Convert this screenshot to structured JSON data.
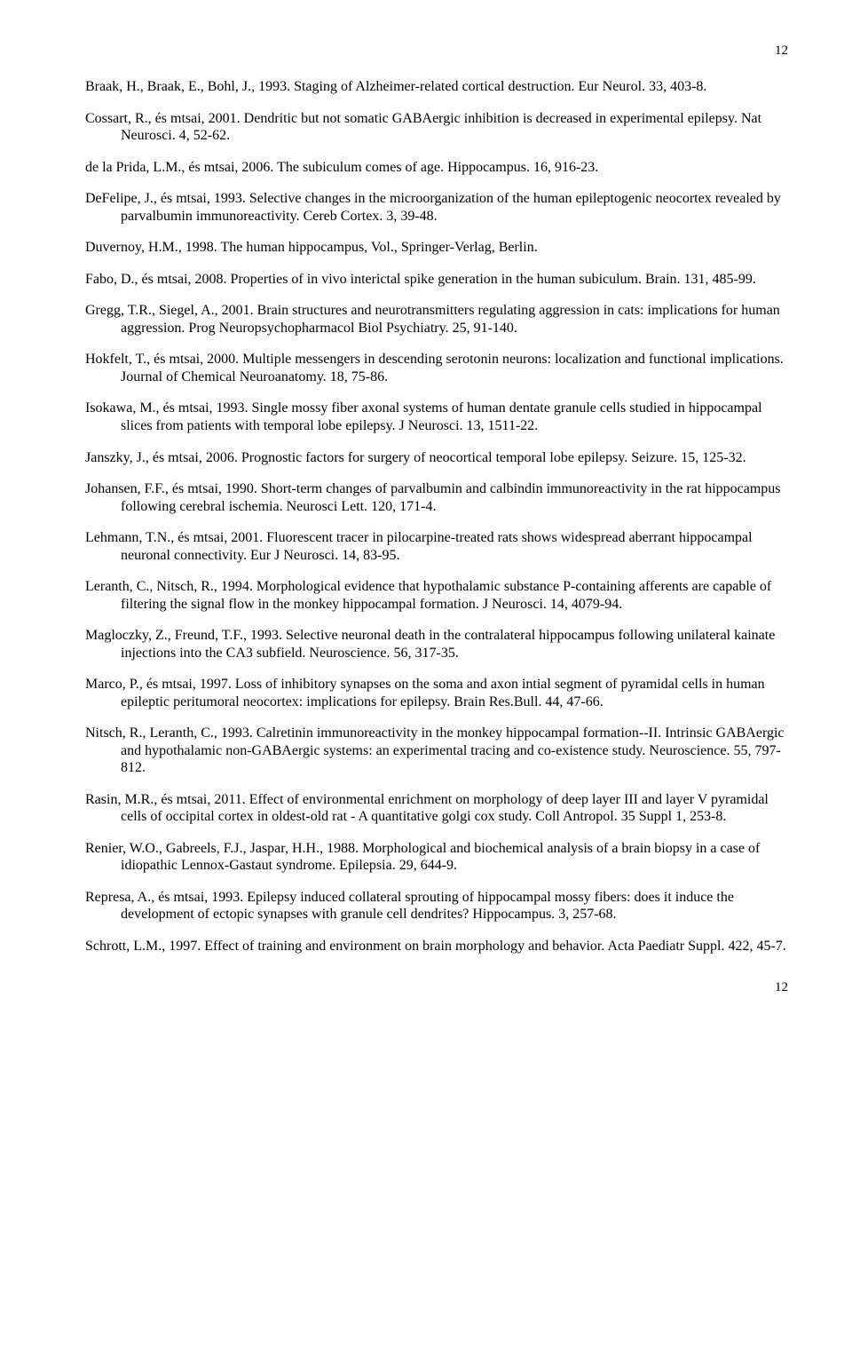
{
  "page_number_top": "12",
  "page_number_bottom": "12",
  "references": [
    "Braak, H., Braak, E., Bohl, J., 1993. Staging of Alzheimer-related cortical destruction. Eur Neurol. 33, 403-8.",
    "Cossart, R., és mtsai, 2001. Dendritic but not somatic GABAergic inhibition is decreased in experimental epilepsy. Nat Neurosci. 4, 52-62.",
    "de la Prida, L.M., és mtsai, 2006. The subiculum comes of age. Hippocampus. 16, 916-23.",
    "DeFelipe, J., és mtsai, 1993. Selective changes in the microorganization of the human epileptogenic neocortex revealed by parvalbumin immunoreactivity. Cereb Cortex. 3, 39-48.",
    "Duvernoy, H.M., 1998. The human hippocampus, Vol., Springer-Verlag, Berlin.",
    "Fabo, D., és mtsai, 2008. Properties of in vivo interictal spike generation in the human subiculum. Brain. 131, 485-99.",
    "Gregg, T.R., Siegel, A., 2001. Brain structures and neurotransmitters regulating aggression in cats: implications for human aggression. Prog Neuropsychopharmacol Biol Psychiatry. 25, 91-140.",
    "Hokfelt, T., és mtsai, 2000. Multiple messengers in descending serotonin neurons: localization and functional implications. Journal of Chemical Neuroanatomy. 18, 75-86.",
    "Isokawa, M., és mtsai, 1993. Single mossy fiber axonal systems of human dentate granule cells studied in hippocampal slices from patients with temporal lobe epilepsy. J Neurosci. 13, 1511-22.",
    "Janszky, J., és mtsai, 2006. Prognostic factors for surgery of neocortical temporal lobe epilepsy. Seizure. 15, 125-32.",
    "Johansen, F.F., és mtsai, 1990. Short-term changes of parvalbumin and calbindin immunoreactivity in the rat hippocampus following cerebral ischemia. Neurosci Lett. 120, 171-4.",
    "Lehmann, T.N., és mtsai, 2001. Fluorescent tracer in pilocarpine-treated rats shows widespread aberrant hippocampal neuronal connectivity. Eur J Neurosci. 14, 83-95.",
    "Leranth, C., Nitsch, R., 1994. Morphological evidence that hypothalamic substance P-containing afferents are capable of filtering the signal flow in the monkey hippocampal formation. J Neurosci. 14, 4079-94.",
    "Magloczky, Z., Freund, T.F., 1993. Selective neuronal death in the contralateral hippocampus following unilateral kainate injections into the CA3 subfield. Neuroscience. 56, 317-35.",
    "Marco, P., és mtsai, 1997. Loss of inhibitory synapses on the soma and axon intial segment of pyramidal cells in human epileptic peritumoral neocortex: implications for epilepsy. Brain Res.Bull. 44, 47-66.",
    "Nitsch, R., Leranth, C., 1993. Calretinin immunoreactivity in the monkey hippocampal formation--II. Intrinsic GABAergic and hypothalamic non-GABAergic systems: an experimental tracing and co-existence study. Neuroscience. 55, 797-812.",
    "Rasin, M.R., és mtsai, 2011. Effect of environmental enrichment on morphology of deep layer III and layer V pyramidal cells of occipital cortex in oldest-old rat - A quantitative golgi cox study. Coll Antropol. 35 Suppl 1, 253-8.",
    "Renier, W.O., Gabreels, F.J., Jaspar, H.H., 1988. Morphological and biochemical analysis of a brain biopsy in a case of idiopathic Lennox-Gastaut syndrome. Epilepsia. 29, 644-9.",
    "Represa, A., és mtsai, 1993. Epilepsy induced collateral sprouting of hippocampal mossy fibers: does it induce the development of ectopic synapses with granule cell dendrites? Hippocampus. 3, 257-68.",
    "Schrott, L.M., 1997. Effect of training and environment on brain morphology and behavior. Acta Paediatr Suppl. 422, 45-7."
  ]
}
